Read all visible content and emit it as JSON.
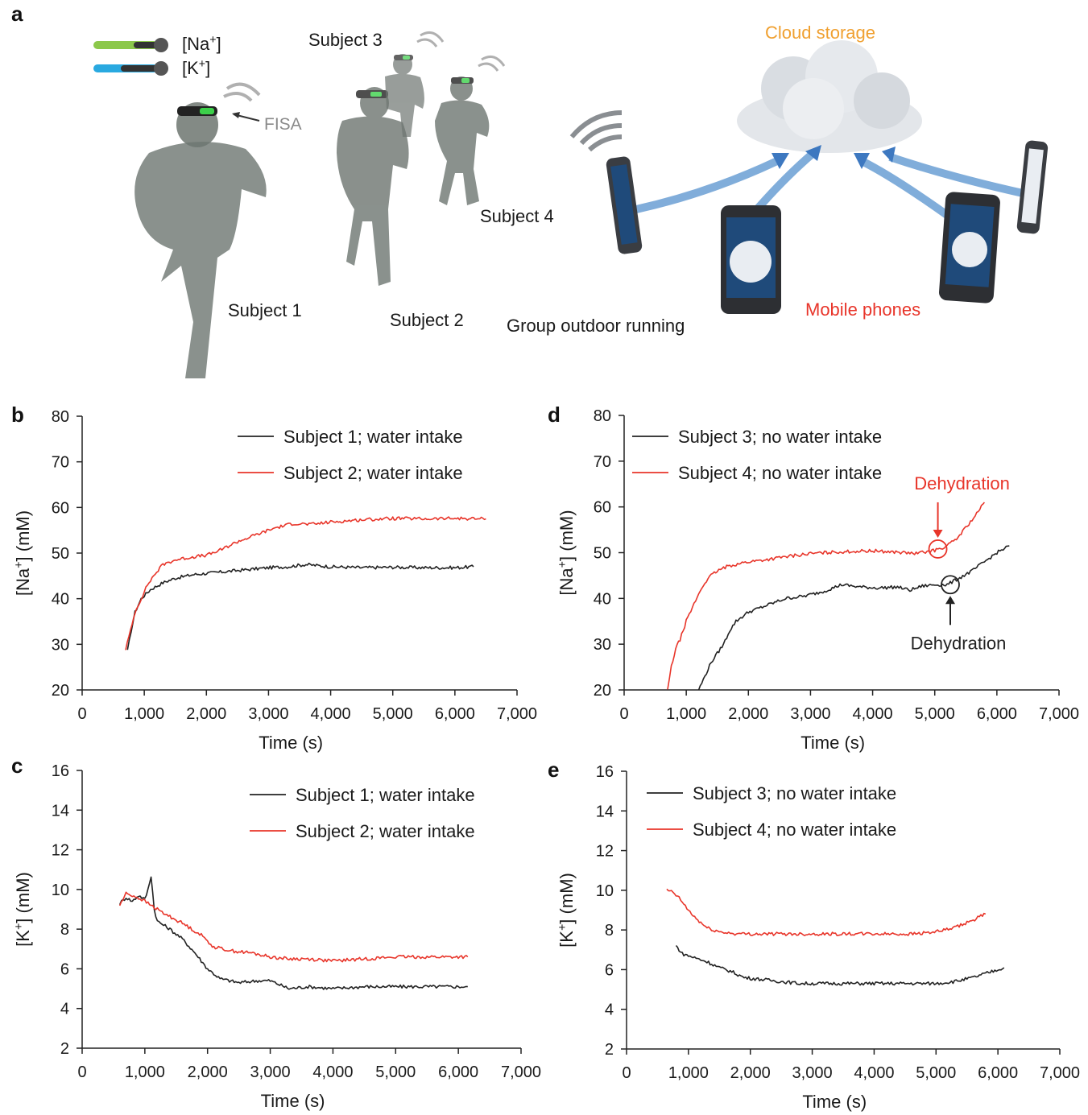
{
  "panel_a": {
    "letter": "a",
    "sensor_na": "[Na+]",
    "sensor_k": "[K+]",
    "fisa": "FISA",
    "subject1": "Subject 1",
    "subject2": "Subject 2",
    "subject3": "Subject 3",
    "subject4": "Subject 4",
    "caption": "Group outdoor running",
    "cloud": "Cloud storage",
    "phones": "Mobile phones",
    "colors": {
      "cloud": "#f0a030",
      "phones": "#e8352a",
      "runner": "#6d7570",
      "arrow": "#5a8fc8"
    }
  },
  "chart_data": [
    {
      "id": "b",
      "letter": "b",
      "type": "line",
      "xlabel": "Time (s)",
      "ylabel": "[Na+] (mM)",
      "xlim": [
        0,
        7000
      ],
      "ylim": [
        20,
        80
      ],
      "xticks": [
        0,
        1000,
        2000,
        3000,
        4000,
        5000,
        6000,
        7000
      ],
      "xtick_labels": [
        "0",
        "1,000",
        "2,000",
        "3,000",
        "4,000",
        "5,000",
        "6,000",
        "7,000"
      ],
      "yticks": [
        20,
        30,
        40,
        50,
        60,
        70,
        80
      ],
      "ytick_labels": [
        "20",
        "30",
        "40",
        "50",
        "60",
        "70",
        "80"
      ],
      "legend_position": "top-right",
      "series": [
        {
          "name": "Subject 1; water intake",
          "color": "#222222",
          "points": [
            [
              730,
              28.5
            ],
            [
              790,
              33
            ],
            [
              850,
              37
            ],
            [
              950,
              40
            ],
            [
              1100,
              42
            ],
            [
              1300,
              43.5
            ],
            [
              1500,
              44.5
            ],
            [
              1800,
              45.3
            ],
            [
              2200,
              45.8
            ],
            [
              2600,
              46.3
            ],
            [
              3000,
              46.8
            ],
            [
              3300,
              47
            ],
            [
              3600,
              47.5
            ],
            [
              4000,
              47
            ],
            [
              4500,
              46.8
            ],
            [
              5000,
              46.9
            ],
            [
              5500,
              46.8
            ],
            [
              6000,
              46.8
            ],
            [
              6300,
              47
            ]
          ]
        },
        {
          "name": "Subject 2; water intake",
          "color": "#e8352a",
          "points": [
            [
              700,
              29
            ],
            [
              780,
              33
            ],
            [
              850,
              37
            ],
            [
              950,
              40
            ],
            [
              1050,
              43
            ],
            [
              1150,
              45
            ],
            [
              1300,
              47.5
            ],
            [
              1500,
              48.5
            ],
            [
              1800,
              49.2
            ],
            [
              2000,
              49.5
            ],
            [
              2200,
              50.5
            ],
            [
              2500,
              52.5
            ],
            [
              2800,
              54
            ],
            [
              3100,
              55.5
            ],
            [
              3400,
              56.5
            ],
            [
              3700,
              56.3
            ],
            [
              4000,
              56.8
            ],
            [
              4500,
              57.3
            ],
            [
              5000,
              57.6
            ],
            [
              5500,
              57.5
            ],
            [
              6000,
              57.6
            ],
            [
              6500,
              57.5
            ]
          ]
        }
      ]
    },
    {
      "id": "c",
      "letter": "c",
      "type": "line",
      "xlabel": "Time (s)",
      "ylabel": "[K+] (mM)",
      "xlim": [
        0,
        7000
      ],
      "ylim": [
        2,
        16
      ],
      "xticks": [
        0,
        1000,
        2000,
        3000,
        4000,
        5000,
        6000,
        7000
      ],
      "xtick_labels": [
        "0",
        "1,000",
        "2,000",
        "3,000",
        "4,000",
        "5,000",
        "6,000",
        "7,000"
      ],
      "yticks": [
        2,
        4,
        6,
        8,
        10,
        12,
        14,
        16
      ],
      "ytick_labels": [
        "2",
        "4",
        "6",
        "8",
        "10",
        "12",
        "14",
        "16"
      ],
      "legend_position": "top-right",
      "series": [
        {
          "name": "Subject 1; water intake",
          "color": "#222222",
          "points": [
            [
              600,
              9.3
            ],
            [
              700,
              9.6
            ],
            [
              800,
              9.4
            ],
            [
              900,
              9.7
            ],
            [
              1000,
              9.5
            ],
            [
              1050,
              10
            ],
            [
              1100,
              10.7
            ],
            [
              1150,
              9
            ],
            [
              1200,
              8.4
            ],
            [
              1400,
              8
            ],
            [
              1600,
              7.5
            ],
            [
              1800,
              6.8
            ],
            [
              2000,
              6
            ],
            [
              2200,
              5.5
            ],
            [
              2500,
              5.3
            ],
            [
              2800,
              5.4
            ],
            [
              3000,
              5.4
            ],
            [
              3300,
              5
            ],
            [
              3600,
              5.1
            ],
            [
              4000,
              5
            ],
            [
              4500,
              5.1
            ],
            [
              5000,
              5.1
            ],
            [
              5500,
              5.1
            ],
            [
              6000,
              5.1
            ],
            [
              6150,
              5.1
            ]
          ]
        },
        {
          "name": "Subject 2; water intake",
          "color": "#e8352a",
          "points": [
            [
              600,
              9.2
            ],
            [
              700,
              9.8
            ],
            [
              800,
              9.7
            ],
            [
              950,
              9.5
            ],
            [
              1100,
              9.2
            ],
            [
              1300,
              8.8
            ],
            [
              1600,
              8.3
            ],
            [
              1900,
              7.7
            ],
            [
              2100,
              7.1
            ],
            [
              2400,
              6.9
            ],
            [
              2700,
              6.8
            ],
            [
              3000,
              6.6
            ],
            [
              3300,
              6.5
            ],
            [
              3600,
              6.5
            ],
            [
              4000,
              6.4
            ],
            [
              4500,
              6.5
            ],
            [
              5000,
              6.6
            ],
            [
              5500,
              6.6
            ],
            [
              6000,
              6.6
            ],
            [
              6150,
              6.6
            ]
          ]
        }
      ]
    },
    {
      "id": "d",
      "letter": "d",
      "type": "line",
      "xlabel": "Time (s)",
      "ylabel": "[Na+] (mM)",
      "xlim": [
        0,
        7000
      ],
      "ylim": [
        20,
        80
      ],
      "xticks": [
        0,
        1000,
        2000,
        3000,
        4000,
        5000,
        6000,
        7000
      ],
      "xtick_labels": [
        "0",
        "1,000",
        "2,000",
        "3,000",
        "4,000",
        "5,000",
        "6,000",
        "7,000"
      ],
      "yticks": [
        20,
        30,
        40,
        50,
        60,
        70,
        80
      ],
      "ytick_labels": [
        "20",
        "30",
        "40",
        "50",
        "60",
        "70",
        "80"
      ],
      "legend_position": "top-left",
      "series": [
        {
          "name": "Subject 3; no water intake",
          "color": "#222222",
          "points": [
            [
              1200,
              20
            ],
            [
              1300,
              23
            ],
            [
              1400,
              26
            ],
            [
              1500,
              28
            ],
            [
              1600,
              30
            ],
            [
              1700,
              33
            ],
            [
              1800,
              35
            ],
            [
              2000,
              37
            ],
            [
              2300,
              38.5
            ],
            [
              2600,
              40
            ],
            [
              2900,
              40.5
            ],
            [
              3200,
              41.5
            ],
            [
              3500,
              43
            ],
            [
              3800,
              42.5
            ],
            [
              4100,
              42.3
            ],
            [
              4400,
              42.5
            ],
            [
              4600,
              41.8
            ],
            [
              4800,
              42.7
            ],
            [
              5000,
              43
            ],
            [
              5200,
              43
            ],
            [
              5400,
              44.5
            ],
            [
              5600,
              46
            ],
            [
              5800,
              48
            ],
            [
              6000,
              50
            ],
            [
              6200,
              51.5
            ]
          ]
        },
        {
          "name": "Subject 4; no water intake",
          "color": "#e8352a",
          "points": [
            [
              700,
              20
            ],
            [
              760,
              25
            ],
            [
              830,
              29
            ],
            [
              900,
              31
            ],
            [
              1000,
              35
            ],
            [
              1100,
              38
            ],
            [
              1200,
              41
            ],
            [
              1300,
              43.5
            ],
            [
              1400,
              45
            ],
            [
              1500,
              46
            ],
            [
              1700,
              47.2
            ],
            [
              2000,
              48
            ],
            [
              2300,
              48.5
            ],
            [
              2700,
              49.3
            ],
            [
              3000,
              49.8
            ],
            [
              3500,
              50.2
            ],
            [
              4000,
              50.4
            ],
            [
              4400,
              50.1
            ],
            [
              4700,
              49.8
            ],
            [
              5000,
              50.5
            ],
            [
              5200,
              51.5
            ],
            [
              5350,
              53
            ],
            [
              5500,
              55.5
            ],
            [
              5650,
              58
            ],
            [
              5800,
              61
            ]
          ]
        }
      ],
      "annotations": [
        {
          "text": "Dehydration",
          "color": "#e8352a",
          "x": 5050,
          "y": 50.8,
          "side": "above"
        },
        {
          "text": "Dehydration",
          "color": "#222222",
          "x": 5250,
          "y": 43,
          "side": "below"
        }
      ]
    },
    {
      "id": "e",
      "letter": "e",
      "type": "line",
      "xlabel": "Time (s)",
      "ylabel": "[K+] (mM)",
      "xlim": [
        0,
        7000
      ],
      "ylim": [
        2,
        16
      ],
      "xticks": [
        0,
        1000,
        2000,
        3000,
        4000,
        5000,
        6000,
        7000
      ],
      "xtick_labels": [
        "0",
        "1,000",
        "2,000",
        "3,000",
        "4,000",
        "5,000",
        "6,000",
        "7,000"
      ],
      "yticks": [
        2,
        4,
        6,
        8,
        10,
        12,
        14,
        16
      ],
      "ytick_labels": [
        "2",
        "4",
        "6",
        "8",
        "10",
        "12",
        "14",
        "16"
      ],
      "legend_position": "top-left",
      "series": [
        {
          "name": "Subject 3; no water intake",
          "color": "#222222",
          "points": [
            [
              800,
              7.2
            ],
            [
              900,
              6.8
            ],
            [
              1100,
              6.6
            ],
            [
              1300,
              6.4
            ],
            [
              1500,
              6.1
            ],
            [
              1700,
              5.9
            ],
            [
              1900,
              5.6
            ],
            [
              2200,
              5.5
            ],
            [
              2500,
              5.4
            ],
            [
              2800,
              5.3
            ],
            [
              3100,
              5.3
            ],
            [
              3500,
              5.3
            ],
            [
              4000,
              5.3
            ],
            [
              4500,
              5.3
            ],
            [
              5000,
              5.3
            ],
            [
              5300,
              5.4
            ],
            [
              5600,
              5.6
            ],
            [
              5900,
              5.9
            ],
            [
              6100,
              6.1
            ]
          ]
        },
        {
          "name": "Subject 4; no water intake",
          "color": "#e8352a",
          "points": [
            [
              650,
              10
            ],
            [
              750,
              9.9
            ],
            [
              850,
              9.6
            ],
            [
              950,
              9.2
            ],
            [
              1050,
              8.8
            ],
            [
              1150,
              8.5
            ],
            [
              1300,
              8.1
            ],
            [
              1500,
              7.9
            ],
            [
              1800,
              7.8
            ],
            [
              2200,
              7.8
            ],
            [
              2600,
              7.8
            ],
            [
              3000,
              7.8
            ],
            [
              3400,
              7.8
            ],
            [
              3800,
              7.8
            ],
            [
              4200,
              7.8
            ],
            [
              4600,
              7.8
            ],
            [
              5000,
              7.9
            ],
            [
              5300,
              8.1
            ],
            [
              5600,
              8.5
            ],
            [
              5800,
              8.8
            ]
          ]
        }
      ]
    }
  ]
}
